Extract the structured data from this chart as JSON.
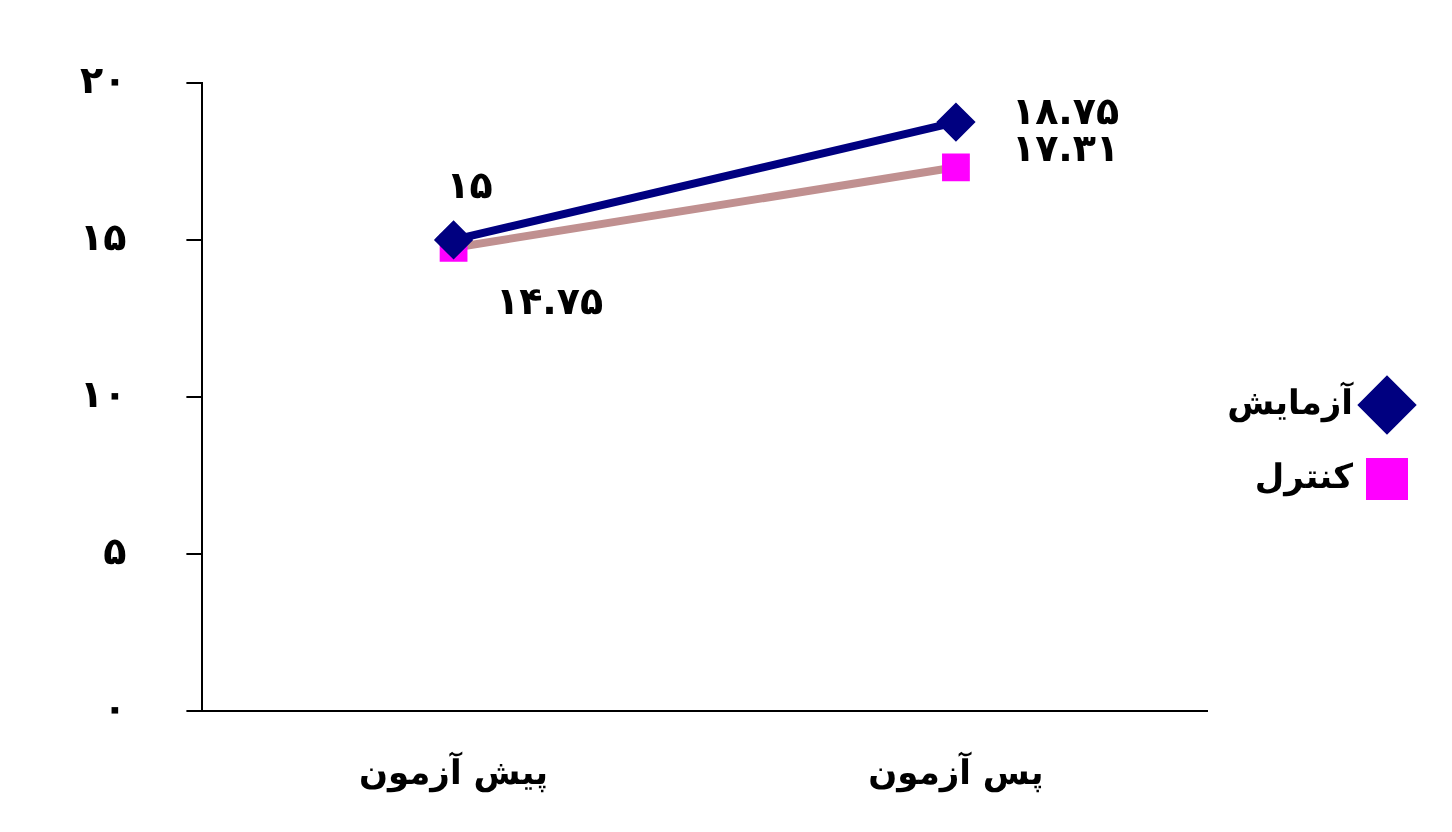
{
  "chart_data": {
    "type": "line",
    "categories": [
      "پیش آزمون",
      "پس آزمون"
    ],
    "series": [
      {
        "name": "آزمایش",
        "color": "#000080",
        "colors": [
          "#000080",
          "#000080"
        ],
        "marker": "diamond",
        "values": [
          15,
          18.75
        ],
        "value_labels": [
          "۱۵",
          "۱۸.۷۵"
        ]
      },
      {
        "name": "کنترل",
        "color": "#c09090",
        "colors": [
          "#ff00ff",
          "#ff00ff"
        ],
        "marker": "square",
        "values": [
          14.75,
          17.31
        ],
        "value_labels": [
          "۱۴.۷۵",
          "۱۷.۳۱"
        ]
      }
    ],
    "ylim": [
      0,
      20
    ],
    "yticks": [
      {
        "value": 0,
        "label": "۰"
      },
      {
        "value": 5,
        "label": "۵"
      },
      {
        "value": 10,
        "label": "۱۰"
      },
      {
        "value": 15,
        "label": "۱۵"
      },
      {
        "value": 20,
        "label": "۲۰"
      }
    ],
    "grid": false,
    "legend": "right"
  }
}
